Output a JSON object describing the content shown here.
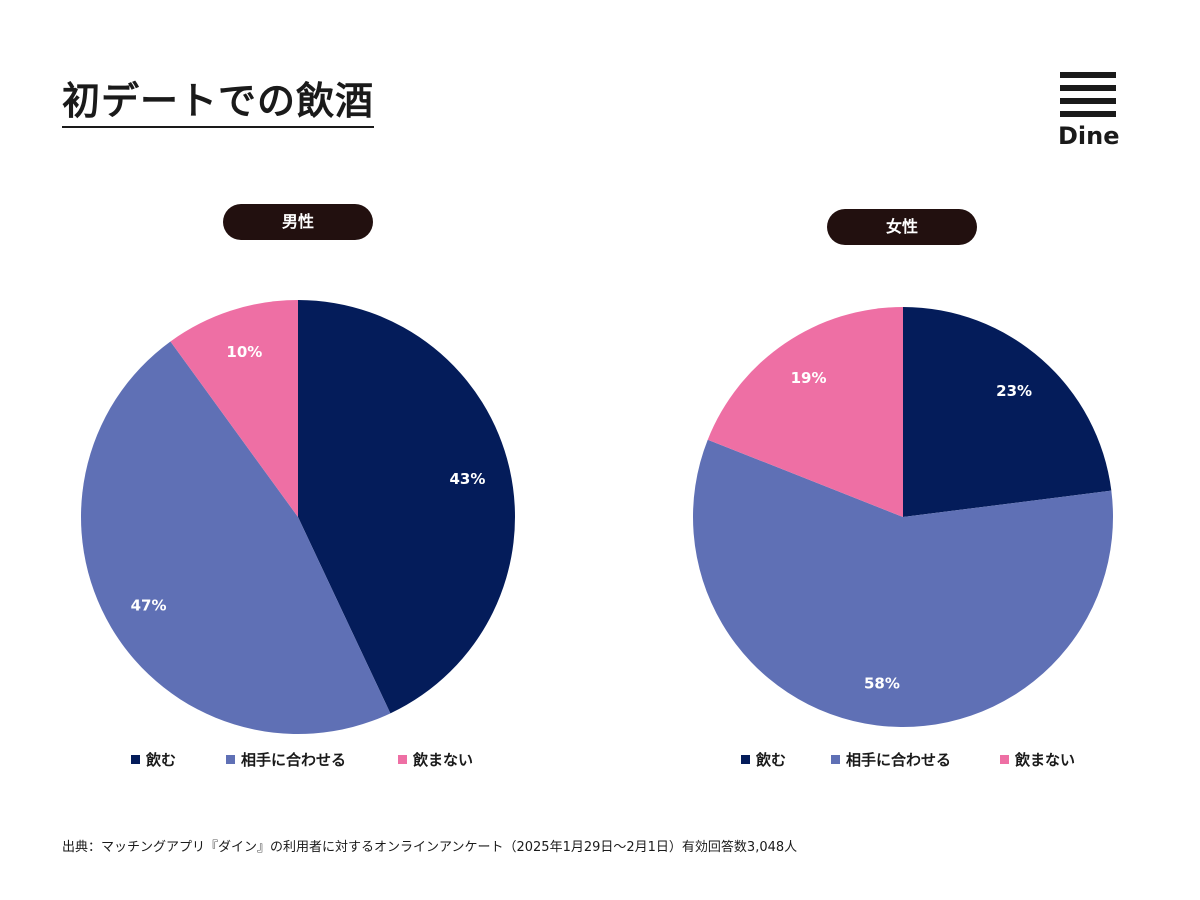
{
  "title": "初デートでの飲酒",
  "logo": {
    "text": "Dine"
  },
  "colors": {
    "drink": "#041c5a",
    "match": "#5f70b5",
    "no_drink": "#ee6fa4",
    "pill": "#22100f"
  },
  "legend_labels": [
    "飲む",
    "相手に合わせる",
    "飲まない"
  ],
  "chart_data": [
    {
      "type": "pie",
      "title": "男性",
      "categories": [
        "飲む",
        "相手に合わせる",
        "飲まない"
      ],
      "values": [
        43,
        47,
        10
      ],
      "labels": [
        "43%",
        "47%",
        "10%"
      ]
    },
    {
      "type": "pie",
      "title": "女性",
      "categories": [
        "飲む",
        "相手に合わせる",
        "飲まない"
      ],
      "values": [
        23,
        58,
        19
      ],
      "labels": [
        "23%",
        "58%",
        "19%"
      ]
    }
  ],
  "source": "出典：マッチングアプリ『ダイン』の利用者に対するオンラインアンケート（2025年1月29日〜2月1日）有効回答数3,048人"
}
